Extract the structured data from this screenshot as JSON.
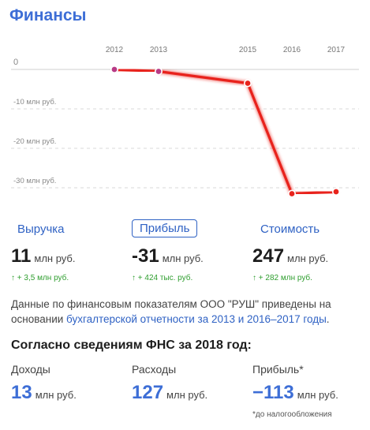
{
  "title": "Финансы",
  "chart_data": {
    "type": "line",
    "x": [
      "2012",
      "2013",
      "2015",
      "2016",
      "2017"
    ],
    "series": [
      {
        "values": [
          0,
          -0.5,
          -3.5,
          -31.5,
          -31
        ]
      }
    ],
    "y_ticks": [
      "0",
      "-10 млн руб.",
      "-20 млн руб.",
      "-30 млн руб."
    ],
    "ylim": [
      -36,
      3
    ],
    "grid": true,
    "line_color": "#e8231c",
    "point_color": "#b83a86"
  },
  "tabs": [
    {
      "label": "Выручка"
    },
    {
      "label": "Прибыль",
      "active": true
    },
    {
      "label": "Стоимость"
    }
  ],
  "metrics": [
    {
      "value": "11",
      "unit": "млн руб.",
      "delta": "↑ + 3,5 млн руб."
    },
    {
      "value": "-31",
      "unit": "млн руб.",
      "delta": "↑ + 424 тыс. руб."
    },
    {
      "value": "247",
      "unit": "млн руб.",
      "delta": "↑ + 282 млн руб."
    }
  ],
  "note": {
    "prefix": "Данные по финансовым показателям ООО \"РУШ\" приведены на основании ",
    "link": "бухгалтерской отчетности за 2013 и 2016–2017 годы",
    "suffix": "."
  },
  "fns": {
    "title": "Согласно сведениям ФНС за 2018 год:",
    "items": [
      {
        "label": "Доходы",
        "value": "13",
        "unit": "млн руб."
      },
      {
        "label": "Расходы",
        "value": "127",
        "unit": "млн руб."
      },
      {
        "label": "Прибыль*",
        "value": "−113",
        "unit": "млн руб."
      }
    ],
    "footnote": "*до налогообложения"
  },
  "colors": {
    "accent": "#3d6ed6",
    "link": "#2f62c4",
    "positive": "#2f9e2f",
    "line": "#e8231c"
  }
}
